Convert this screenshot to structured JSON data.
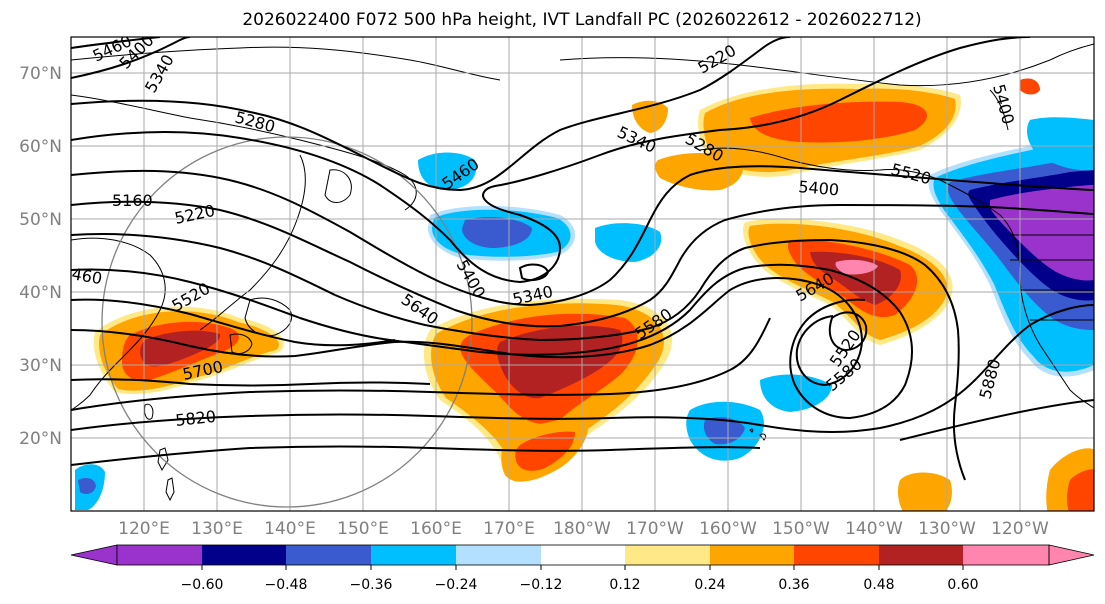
{
  "title": "2026022400 F072 500 hPa height, IVT Landfall PC (2026022612 - 2026022712)",
  "map": {
    "latitude_labels": [
      "70°N",
      "60°N",
      "50°N",
      "40°N",
      "30°N",
      "20°N"
    ],
    "longitude_labels": [
      "120°E",
      "130°E",
      "140°E",
      "150°E",
      "160°E",
      "170°E",
      "180°W",
      "170°W",
      "160°W",
      "150°W",
      "140°W",
      "130°W",
      "120°W"
    ],
    "height_contour_labels": [
      "5460",
      "5400",
      "5340",
      "5280",
      "5160",
      "5220",
      "460",
      "5520",
      "5700",
      "5820",
      "5460",
      "5400",
      "5340",
      "5640",
      "5580",
      "5340",
      "5280",
      "5220",
      "5400",
      "5520",
      "5640",
      "5520",
      "5580",
      "5880",
      "5400"
    ],
    "colors": {
      "land_outline": "#000000",
      "gridline": "#aaaaaa",
      "range_ring": "#808080"
    }
  },
  "colorbar": {
    "colors": [
      "#9933cc",
      "#00008b",
      "#3a5bcf",
      "#00bfff",
      "#b3e0ff",
      "#ffffff",
      "#ffe987",
      "#ffa500",
      "#ff4500",
      "#b22222",
      "#ff85ae"
    ],
    "tick_labels": [
      "−0.60",
      "−0.48",
      "−0.36",
      "−0.24",
      "−0.12",
      "0.12",
      "0.24",
      "0.36",
      "0.48",
      "0.60"
    ]
  }
}
